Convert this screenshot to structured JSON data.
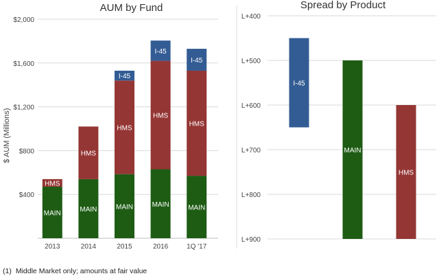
{
  "chart_data": [
    {
      "type": "bar",
      "stacked": true,
      "title": "AUM by Fund",
      "xlabel": "",
      "ylabel": "$ AUM (Millions)",
      "ylim": [
        0,
        2000
      ],
      "yticks": [
        400,
        800,
        1200,
        1600,
        2000
      ],
      "ytick_labels": [
        "$400",
        "$800",
        "$1,200",
        "$1,600",
        "$2,000"
      ],
      "categories": [
        "2013",
        "2014",
        "2015",
        "2016",
        "1Q '17"
      ],
      "grid": true,
      "series": [
        {
          "name": "MAIN",
          "color": "#1e5c14",
          "values": [
            470,
            540,
            585,
            630,
            570
          ]
        },
        {
          "name": "HMS",
          "color": "#943634",
          "values": [
            70,
            480,
            855,
            990,
            960
          ]
        },
        {
          "name": "I-45",
          "color": "#335c94",
          "values": [
            0,
            0,
            90,
            185,
            200
          ]
        }
      ]
    },
    {
      "type": "bar",
      "subtype": "floating",
      "title": "Spread by Product",
      "xlabel": "",
      "ylabel": "",
      "yaxis_inverted": true,
      "ylim": [
        400,
        900
      ],
      "yticks": [
        400,
        500,
        600,
        700,
        800,
        900
      ],
      "ytick_labels": [
        "L+400",
        "L+500",
        "L+600",
        "L+700",
        "L+800",
        "L+900"
      ],
      "grid": true,
      "bars": [
        {
          "label": "I-45",
          "color": "#335c94",
          "from": 450,
          "to": 650
        },
        {
          "label": "MAIN",
          "color": "#1e5c14",
          "from": 500,
          "to": 900
        },
        {
          "label": "HMS",
          "color": "#943634",
          "from": 600,
          "to": 900
        }
      ]
    }
  ],
  "footnote": {
    "marker": "(1)",
    "text": "Middle Market only; amounts at fair value"
  }
}
